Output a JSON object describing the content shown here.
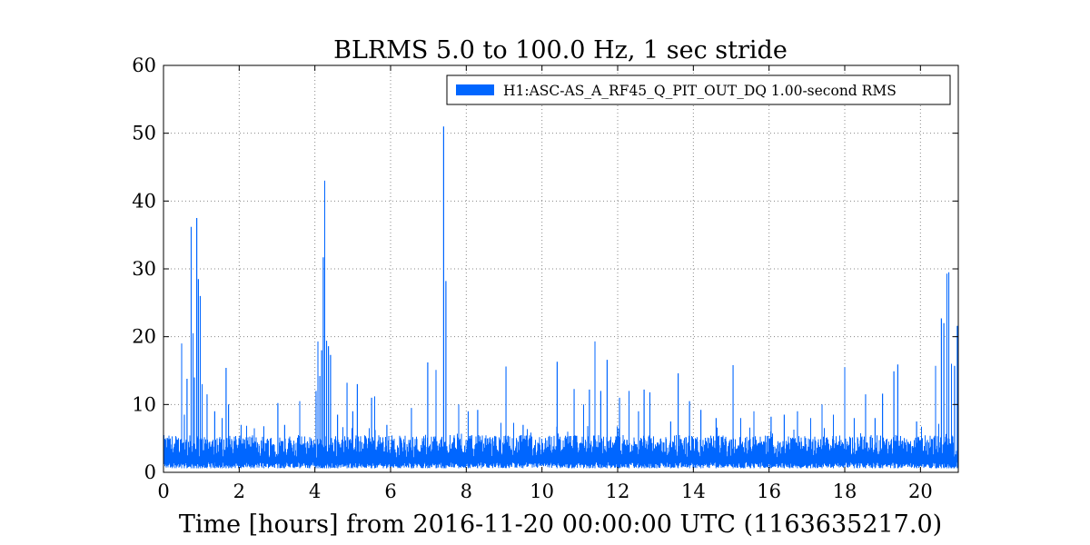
{
  "chart_data": {
    "type": "line",
    "title": "BLRMS 5.0 to 100.0 Hz, 1 sec stride",
    "xlabel": "Time [hours] from 2016-11-20 00:00:00 UTC (1163635217.0)",
    "ylabel": "",
    "xlim": [
      0,
      21
    ],
    "ylim": [
      0,
      60
    ],
    "xticks": [
      0,
      2,
      4,
      6,
      8,
      10,
      12,
      14,
      16,
      18,
      20
    ],
    "yticks": [
      0,
      10,
      20,
      30,
      40,
      50,
      60
    ],
    "grid": true,
    "legend_position": "top-right",
    "colors": {
      "series": "#0066ff",
      "axis": "#000000",
      "grid": "#888888"
    },
    "series": [
      {
        "name": "H1:ASC-AS_A_RF45_Q_PIT_OUT_DQ 1.00-second RMS",
        "baseline": {
          "floor": 0.6,
          "typical_max": 5.5
        },
        "spikes": [
          {
            "x": 0.48,
            "y": 19.0
          },
          {
            "x": 0.55,
            "y": 8.5
          },
          {
            "x": 0.62,
            "y": 13.8
          },
          {
            "x": 0.73,
            "y": 36.2
          },
          {
            "x": 0.78,
            "y": 20.5
          },
          {
            "x": 0.82,
            "y": 14.0
          },
          {
            "x": 0.88,
            "y": 37.5
          },
          {
            "x": 0.92,
            "y": 28.5
          },
          {
            "x": 0.97,
            "y": 26.0
          },
          {
            "x": 1.02,
            "y": 13.0
          },
          {
            "x": 1.15,
            "y": 11.5
          },
          {
            "x": 1.35,
            "y": 9.0
          },
          {
            "x": 1.55,
            "y": 8.0
          },
          {
            "x": 1.65,
            "y": 15.4
          },
          {
            "x": 1.72,
            "y": 10.0
          },
          {
            "x": 2.05,
            "y": 7.0
          },
          {
            "x": 2.4,
            "y": 6.5
          },
          {
            "x": 2.65,
            "y": 6.8
          },
          {
            "x": 3.02,
            "y": 10.2
          },
          {
            "x": 3.2,
            "y": 7.0
          },
          {
            "x": 3.6,
            "y": 10.5
          },
          {
            "x": 4.03,
            "y": 12.0
          },
          {
            "x": 4.08,
            "y": 19.3
          },
          {
            "x": 4.13,
            "y": 14.2
          },
          {
            "x": 4.18,
            "y": 18.0
          },
          {
            "x": 4.22,
            "y": 31.7
          },
          {
            "x": 4.26,
            "y": 43.0
          },
          {
            "x": 4.31,
            "y": 19.4
          },
          {
            "x": 4.36,
            "y": 18.6
          },
          {
            "x": 4.41,
            "y": 17.3
          },
          {
            "x": 4.6,
            "y": 8.5
          },
          {
            "x": 4.85,
            "y": 13.2
          },
          {
            "x": 5.0,
            "y": 9.0
          },
          {
            "x": 5.12,
            "y": 13.0
          },
          {
            "x": 5.5,
            "y": 11.0
          },
          {
            "x": 5.58,
            "y": 11.2
          },
          {
            "x": 5.9,
            "y": 7.0
          },
          {
            "x": 6.55,
            "y": 9.5
          },
          {
            "x": 6.98,
            "y": 16.2
          },
          {
            "x": 7.2,
            "y": 15.1
          },
          {
            "x": 7.4,
            "y": 51.0
          },
          {
            "x": 7.46,
            "y": 28.2
          },
          {
            "x": 7.8,
            "y": 10.0
          },
          {
            "x": 8.05,
            "y": 9.0
          },
          {
            "x": 8.3,
            "y": 9.2
          },
          {
            "x": 9.05,
            "y": 15.6
          },
          {
            "x": 9.5,
            "y": 7.0
          },
          {
            "x": 10.4,
            "y": 16.3
          },
          {
            "x": 10.85,
            "y": 12.3
          },
          {
            "x": 11.1,
            "y": 10.0
          },
          {
            "x": 11.25,
            "y": 12.2
          },
          {
            "x": 11.4,
            "y": 19.3
          },
          {
            "x": 11.55,
            "y": 12.0
          },
          {
            "x": 11.72,
            "y": 16.6
          },
          {
            "x": 12.05,
            "y": 11.0
          },
          {
            "x": 12.3,
            "y": 12.0
          },
          {
            "x": 12.55,
            "y": 9.0
          },
          {
            "x": 12.7,
            "y": 12.2
          },
          {
            "x": 12.85,
            "y": 11.8
          },
          {
            "x": 13.4,
            "y": 7.5
          },
          {
            "x": 13.6,
            "y": 14.6
          },
          {
            "x": 13.9,
            "y": 10.5
          },
          {
            "x": 14.2,
            "y": 9.2
          },
          {
            "x": 14.6,
            "y": 8.0
          },
          {
            "x": 15.05,
            "y": 15.8
          },
          {
            "x": 15.25,
            "y": 8.0
          },
          {
            "x": 15.6,
            "y": 9.0
          },
          {
            "x": 16.05,
            "y": 8.2
          },
          {
            "x": 16.4,
            "y": 8.5
          },
          {
            "x": 16.75,
            "y": 9.0
          },
          {
            "x": 17.1,
            "y": 8.0
          },
          {
            "x": 17.4,
            "y": 10.0
          },
          {
            "x": 17.7,
            "y": 8.5
          },
          {
            "x": 18.0,
            "y": 15.5
          },
          {
            "x": 18.25,
            "y": 8.0
          },
          {
            "x": 18.55,
            "y": 11.5
          },
          {
            "x": 18.8,
            "y": 8.0
          },
          {
            "x": 19.0,
            "y": 11.6
          },
          {
            "x": 19.3,
            "y": 14.9
          },
          {
            "x": 19.4,
            "y": 15.9
          },
          {
            "x": 19.9,
            "y": 7.5
          },
          {
            "x": 20.4,
            "y": 15.7
          },
          {
            "x": 20.55,
            "y": 22.7
          },
          {
            "x": 20.62,
            "y": 22.0
          },
          {
            "x": 20.7,
            "y": 29.3
          },
          {
            "x": 20.75,
            "y": 29.5
          },
          {
            "x": 20.82,
            "y": 16.0
          },
          {
            "x": 20.9,
            "y": 15.7
          },
          {
            "x": 20.97,
            "y": 21.6
          }
        ]
      }
    ]
  }
}
